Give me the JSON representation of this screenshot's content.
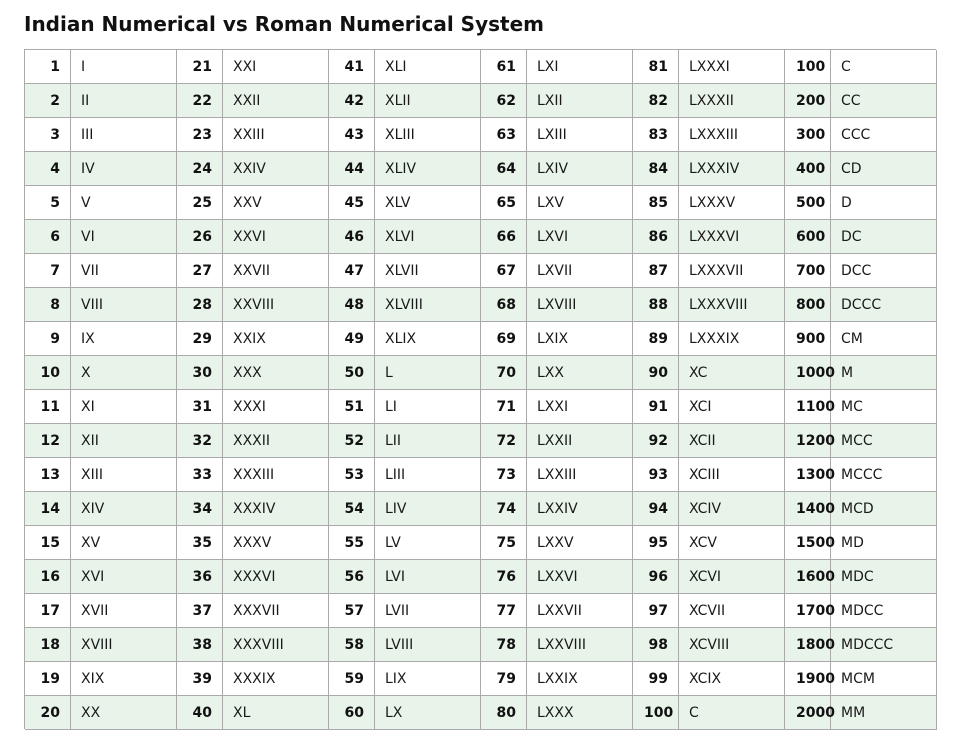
{
  "title": "Indian Numerical vs Roman Numerical System",
  "colors": {
    "alt_row": "#e8f4ea",
    "border": "#aaaaaa"
  },
  "table": {
    "columns": [
      {
        "nums": [
          "1",
          "2",
          "3",
          "4",
          "5",
          "6",
          "7",
          "8",
          "9",
          "10",
          "11",
          "12",
          "13",
          "14",
          "15",
          "16",
          "17",
          "18",
          "19",
          "20"
        ],
        "romans": [
          "I",
          "II",
          "III",
          "IV",
          "V",
          "VI",
          "VII",
          "VIII",
          "IX",
          "X",
          "XI",
          "XII",
          "XIII",
          "XIV",
          "XV",
          "XVI",
          "XVII",
          "XVIII",
          "XIX",
          "XX"
        ]
      },
      {
        "nums": [
          "21",
          "22",
          "23",
          "24",
          "25",
          "26",
          "27",
          "28",
          "29",
          "30",
          "31",
          "32",
          "33",
          "34",
          "35",
          "36",
          "37",
          "38",
          "39",
          "40"
        ],
        "romans": [
          "XXI",
          "XXII",
          "XXIII",
          "XXIV",
          "XXV",
          "XXVI",
          "XXVII",
          "XXVIII",
          "XXIX",
          "XXX",
          "XXXI",
          "XXXII",
          "XXXIII",
          "XXXIV",
          "XXXV",
          "XXXVI",
          "XXXVII",
          "XXXVIII",
          "XXXIX",
          "XL"
        ]
      },
      {
        "nums": [
          "41",
          "42",
          "43",
          "44",
          "45",
          "46",
          "47",
          "48",
          "49",
          "50",
          "51",
          "52",
          "53",
          "54",
          "55",
          "56",
          "57",
          "58",
          "59",
          "60"
        ],
        "romans": [
          "XLI",
          "XLII",
          "XLIII",
          "XLIV",
          "XLV",
          "XLVI",
          "XLVII",
          "XLVIII",
          "XLIX",
          "L",
          "LI",
          "LII",
          "LIII",
          "LIV",
          "LV",
          "LVI",
          "LVII",
          "LVIII",
          "LIX",
          "LX"
        ]
      },
      {
        "nums": [
          "61",
          "62",
          "63",
          "64",
          "65",
          "66",
          "67",
          "68",
          "69",
          "70",
          "71",
          "72",
          "73",
          "74",
          "75",
          "76",
          "77",
          "78",
          "79",
          "80"
        ],
        "romans": [
          "LXI",
          "LXII",
          "LXIII",
          "LXIV",
          "LXV",
          "LXVI",
          "LXVII",
          "LXVIII",
          "LXIX",
          "LXX",
          "LXXI",
          "LXXII",
          "LXXIII",
          "LXXIV",
          "LXXV",
          "LXXVI",
          "LXXVII",
          "LXXVIII",
          "LXXIX",
          "LXXX"
        ]
      },
      {
        "nums": [
          "81",
          "82",
          "83",
          "84",
          "85",
          "86",
          "87",
          "88",
          "89",
          "90",
          "91",
          "92",
          "93",
          "94",
          "95",
          "96",
          "97",
          "98",
          "99",
          "100"
        ],
        "romans": [
          "LXXXI",
          "LXXXII",
          "LXXXIII",
          "LXXXIV",
          "LXXXV",
          "LXXXVI",
          "LXXXVII",
          "LXXXVIII",
          "LXXXIX",
          "XC",
          "XCI",
          "XCII",
          "XCIII",
          "XCIV",
          "XCV",
          "XCVI",
          "XCVII",
          "XCVIII",
          "XCIX",
          "C"
        ]
      },
      {
        "nums": [
          "100",
          "200",
          "300",
          "400",
          "500",
          "600",
          "700",
          "800",
          "900",
          "1000",
          "1100",
          "1200",
          "1300",
          "1400",
          "1500",
          "1600",
          "1700",
          "1800",
          "1900",
          "2000"
        ],
        "romans": [
          "C",
          "CC",
          "CCC",
          "CD",
          "D",
          "DC",
          "DCC",
          "DCCC",
          "CM",
          "M",
          "MC",
          "MCC",
          "MCCC",
          "MCD",
          "MD",
          "MDC",
          "MDCC",
          "MDCCC",
          "MCM",
          "MM"
        ]
      }
    ]
  }
}
